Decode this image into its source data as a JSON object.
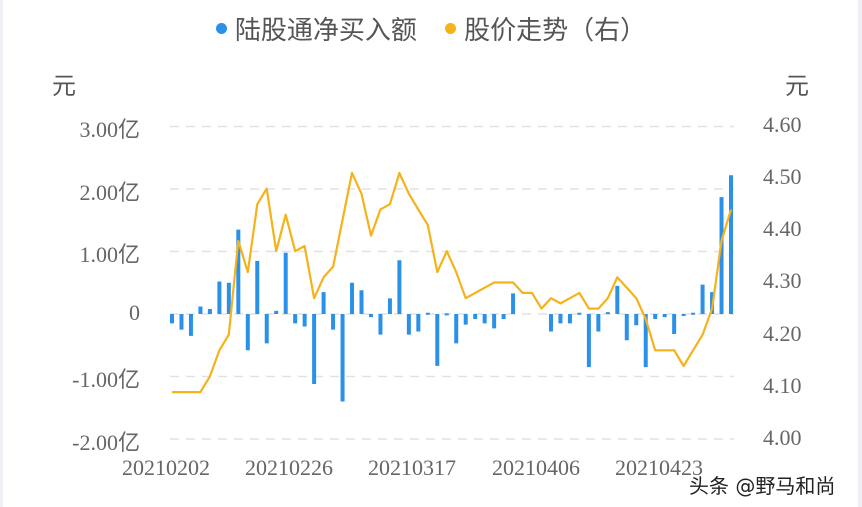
{
  "legend": {
    "series1": {
      "label": "陆股通净买入额",
      "color": "#2b90e8"
    },
    "series2": {
      "label": "股价走势（右）",
      "color": "#f5b21a"
    }
  },
  "axes": {
    "left_unit": "元",
    "right_unit": "元",
    "left_ticks": [
      "3.00亿",
      "2.00亿",
      "1.00亿",
      "0",
      "-1.00亿",
      "-2.00亿"
    ],
    "right_ticks": [
      "4.60",
      "4.50",
      "4.40",
      "4.30",
      "4.20",
      "4.10",
      "4.00"
    ],
    "x_ticks": [
      "20210202",
      "20210226",
      "20210317",
      "20210406",
      "20210423"
    ]
  },
  "watermark": "头条 @野马和尚",
  "chart_data": {
    "type": "bar+line",
    "title": "",
    "legend_position": "top",
    "grid": "horizontal dashed",
    "xlabel": "",
    "ylabel_left": "元",
    "ylabel_right": "元",
    "ylim_left": [
      -2.0,
      3.0
    ],
    "ylim_right": [
      4.0,
      4.6
    ],
    "x_tick_labels": [
      "20210202",
      "20210226",
      "20210317",
      "20210406",
      "20210423"
    ],
    "series": [
      {
        "name": "陆股通净买入额",
        "type": "bar",
        "axis": "left",
        "unit": "亿元",
        "color": "#2b90e8",
        "values": [
          -0.15,
          -0.25,
          -0.35,
          0.12,
          0.08,
          0.52,
          0.5,
          1.35,
          -0.58,
          0.85,
          -0.47,
          0.05,
          0.98,
          -0.15,
          -0.2,
          -1.12,
          0.35,
          -0.25,
          -1.4,
          0.5,
          0.38,
          -0.05,
          -0.33,
          0.25,
          0.86,
          -0.33,
          -0.28,
          0.02,
          -0.83,
          0.01,
          -0.47,
          -0.17,
          -0.08,
          -0.15,
          -0.23,
          -0.08,
          0.33,
          0.0,
          0.0,
          0.0,
          -0.28,
          -0.15,
          -0.15,
          0.02,
          -0.85,
          -0.28,
          0.03,
          0.45,
          -0.42,
          -0.18,
          -0.85,
          -0.08,
          -0.05,
          -0.32,
          -0.02,
          0.02,
          0.47,
          0.35,
          1.87,
          2.22
        ]
      },
      {
        "name": "股价走势（右）",
        "type": "line",
        "axis": "right",
        "unit": "元",
        "color": "#f5b21a",
        "values": [
          4.09,
          4.09,
          4.09,
          4.09,
          4.12,
          4.17,
          4.2,
          4.38,
          4.32,
          4.45,
          4.48,
          4.36,
          4.43,
          4.36,
          4.37,
          4.27,
          4.31,
          4.33,
          4.42,
          4.51,
          4.47,
          4.39,
          4.44,
          4.45,
          4.51,
          4.47,
          4.44,
          4.41,
          4.32,
          4.36,
          4.32,
          4.27,
          4.28,
          4.29,
          4.3,
          4.3,
          4.3,
          4.28,
          4.28,
          4.25,
          4.27,
          4.26,
          4.27,
          4.28,
          4.25,
          4.25,
          4.27,
          4.31,
          4.29,
          4.27,
          4.23,
          4.17,
          4.17,
          4.17,
          4.14,
          4.17,
          4.2,
          4.25,
          4.38,
          4.44
        ]
      }
    ]
  }
}
